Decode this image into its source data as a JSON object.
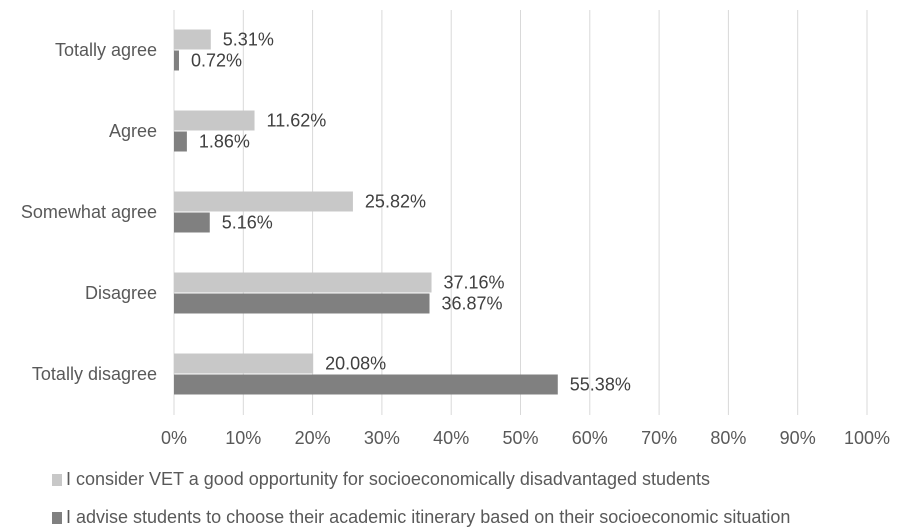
{
  "chart_data": {
    "type": "bar",
    "orientation": "horizontal",
    "categories": [
      "Totally agree",
      "Agree",
      "Somewhat agree",
      "Disagree",
      "Totally disagree"
    ],
    "series": [
      {
        "name": "I consider VET a good opportunity for socioeconomically disadvantaged students",
        "color": "#c8c8c8",
        "values": [
          5.31,
          11.62,
          25.82,
          37.16,
          20.08
        ],
        "labels": [
          "5.31%",
          "11.62%",
          "25.82%",
          "37.16%",
          "20.08%"
        ]
      },
      {
        "name": "I advise students to choose their academic itinerary based on their socioeconomic situation",
        "color": "#808080",
        "values": [
          0.72,
          1.86,
          5.16,
          36.87,
          55.38
        ],
        "labels": [
          "0.72%",
          "1.86%",
          "5.16%",
          "36.87%",
          "55.38%"
        ]
      }
    ],
    "xlim": [
      0,
      100
    ],
    "x_ticks": [
      "0%",
      "10%",
      "20%",
      "30%",
      "40%",
      "50%",
      "60%",
      "70%",
      "80%",
      "90%",
      "100%"
    ],
    "grid": "vertical",
    "legend_position": "bottom",
    "title": "",
    "xlabel": "",
    "ylabel": ""
  }
}
